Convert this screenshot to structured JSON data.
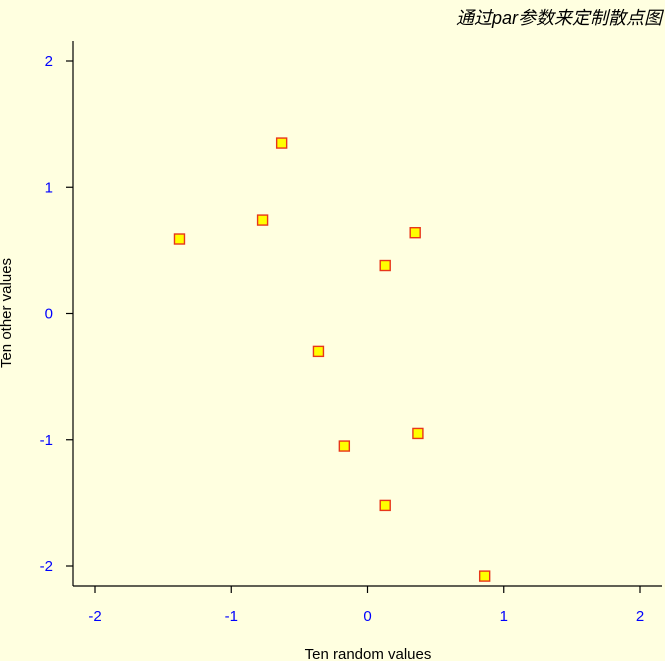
{
  "chart_data": {
    "type": "scatter",
    "title": "通过par参数来定制散点图",
    "xlabel": "Ten random values",
    "ylabel": "Ten other values",
    "xlim": [
      -2.15,
      2.15
    ],
    "ylim": [
      -2.15,
      2.15
    ],
    "x_ticks": [
      -2,
      -1,
      0,
      1,
      2
    ],
    "y_ticks": [
      -2,
      -1,
      0,
      1,
      2
    ],
    "x_tick_labels": [
      "-2",
      "-1",
      "0",
      "1",
      "2"
    ],
    "y_tick_labels": [
      "-2",
      "-1",
      "0",
      "1",
      "2"
    ],
    "points": [
      {
        "x": -0.63,
        "y": 1.35
      },
      {
        "x": -0.77,
        "y": 0.74
      },
      {
        "x": -1.38,
        "y": 0.59
      },
      {
        "x": 0.35,
        "y": 0.64
      },
      {
        "x": 0.13,
        "y": 0.38
      },
      {
        "x": -0.36,
        "y": -0.3
      },
      {
        "x": -0.17,
        "y": -1.05
      },
      {
        "x": 0.37,
        "y": -0.95
      },
      {
        "x": 0.13,
        "y": -1.52
      },
      {
        "x": 0.86,
        "y": -2.08
      }
    ],
    "grid": false,
    "colors": {
      "background": "#ffffe0",
      "point_fill": "#ffff00",
      "point_border": "#e8361a",
      "tick_label": "#0000ff",
      "axis": "#000000"
    }
  }
}
